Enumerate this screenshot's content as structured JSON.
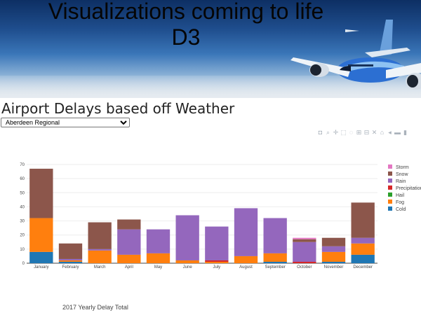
{
  "banner": {
    "title_line1": "Visualizations coming to life",
    "title_line2": "D3"
  },
  "page": {
    "heading": "Airport Delays based off Weather",
    "footer": "2017 Yearly Delay Total"
  },
  "airport_select": {
    "selected": "Aberdeen Regional"
  },
  "modebar": {
    "icons": [
      "camera-icon",
      "zoom-icon",
      "pan-icon",
      "box-select-icon",
      "lasso-icon",
      "zoom-in-icon",
      "zoom-out-icon",
      "autoscale-icon",
      "reset-axes-icon",
      "hover-closest-icon",
      "hover-compare-icon",
      "plotly-logo-icon"
    ],
    "glyphs": [
      "◘",
      "⌕",
      "✛",
      "⬚",
      "◌",
      "⊞",
      "⊟",
      "✕",
      "⌂",
      "◂",
      "▬",
      "▮"
    ]
  },
  "colors": {
    "Cold": "#1f77b4",
    "Fog": "#ff7f0e",
    "Hail": "#2ca02c",
    "Precipitation": "#d62728",
    "Rain": "#9467bd",
    "Snow": "#8c564b",
    "Storm": "#e377c2"
  },
  "chart_data": {
    "type": "bar",
    "stacked": true,
    "categories": [
      "January",
      "February",
      "March",
      "April",
      "May",
      "June",
      "July",
      "August",
      "September",
      "October",
      "November",
      "December"
    ],
    "ylim": [
      0,
      70
    ],
    "yticks": [
      0,
      10,
      20,
      30,
      40,
      50,
      60,
      70
    ],
    "legend_position": "right",
    "series": [
      {
        "name": "Cold",
        "values": [
          8,
          1,
          0,
          0,
          0,
          0,
          0,
          0,
          1,
          0,
          1,
          6
        ]
      },
      {
        "name": "Fog",
        "values": [
          24,
          1,
          9,
          6,
          7,
          2,
          1,
          5,
          6,
          0,
          7,
          8
        ]
      },
      {
        "name": "Hail",
        "values": [
          0,
          0,
          0,
          0,
          0,
          0,
          0,
          0,
          0,
          0,
          0,
          0
        ]
      },
      {
        "name": "Precipitation",
        "values": [
          0,
          0,
          0,
          0,
          0,
          0,
          1,
          0,
          0,
          1,
          0,
          0
        ]
      },
      {
        "name": "Rain",
        "values": [
          0,
          1,
          1,
          18,
          17,
          32,
          24,
          34,
          25,
          14,
          4,
          4
        ]
      },
      {
        "name": "Snow",
        "values": [
          35,
          11,
          19,
          7,
          0,
          0,
          0,
          0,
          0,
          2,
          6,
          25
        ]
      },
      {
        "name": "Storm",
        "values": [
          0,
          0,
          0,
          0,
          0,
          0,
          0,
          0,
          0,
          1,
          0,
          0
        ]
      }
    ],
    "legend_order": [
      "Storm",
      "Snow",
      "Rain",
      "Precipitation",
      "Hail",
      "Fog",
      "Cold"
    ]
  }
}
